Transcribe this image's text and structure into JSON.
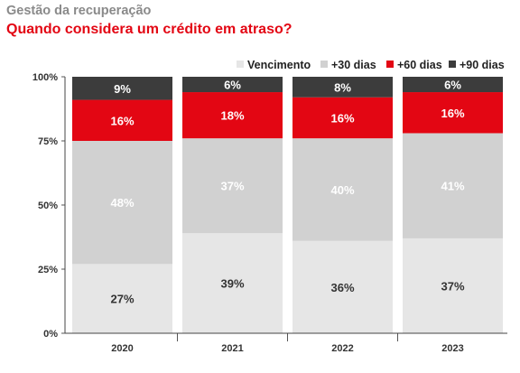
{
  "header": {
    "supertitle": "Gestão da recuperação",
    "title": "Quando considera um crédito em atraso?"
  },
  "chart_data": {
    "type": "bar",
    "stacked": true,
    "categories": [
      "2020",
      "2021",
      "2022",
      "2023"
    ],
    "series": [
      {
        "name": "Vencimento",
        "values": [
          27,
          39,
          36,
          37
        ],
        "labels": [
          "27%",
          "39%",
          "36%",
          "37%"
        ],
        "color": "#e6e6e6",
        "label_color": "#333333"
      },
      {
        "name": "+30 dias",
        "values": [
          48,
          37,
          40,
          41
        ],
        "labels": [
          "48%",
          "37%",
          "40%",
          "41%"
        ],
        "color": "#d1d1d1",
        "label_color": "#ffffff"
      },
      {
        "name": "+60 dias",
        "values": [
          16,
          18,
          16,
          16
        ],
        "labels": [
          "16%",
          "18%",
          "16%",
          "16%"
        ],
        "color": "#e30613",
        "label_color": "#ffffff"
      },
      {
        "name": "+90 dias",
        "values": [
          9,
          6,
          8,
          6
        ],
        "labels": [
          "9%",
          "6%",
          "8%",
          "6%"
        ],
        "color": "#3c3c3c",
        "label_color": "#ffffff"
      }
    ],
    "y_ticks": [
      "0%",
      "25%",
      "50%",
      "75%",
      "100%"
    ],
    "ylim": [
      0,
      100
    ],
    "legend": "top-right",
    "grid": false
  }
}
